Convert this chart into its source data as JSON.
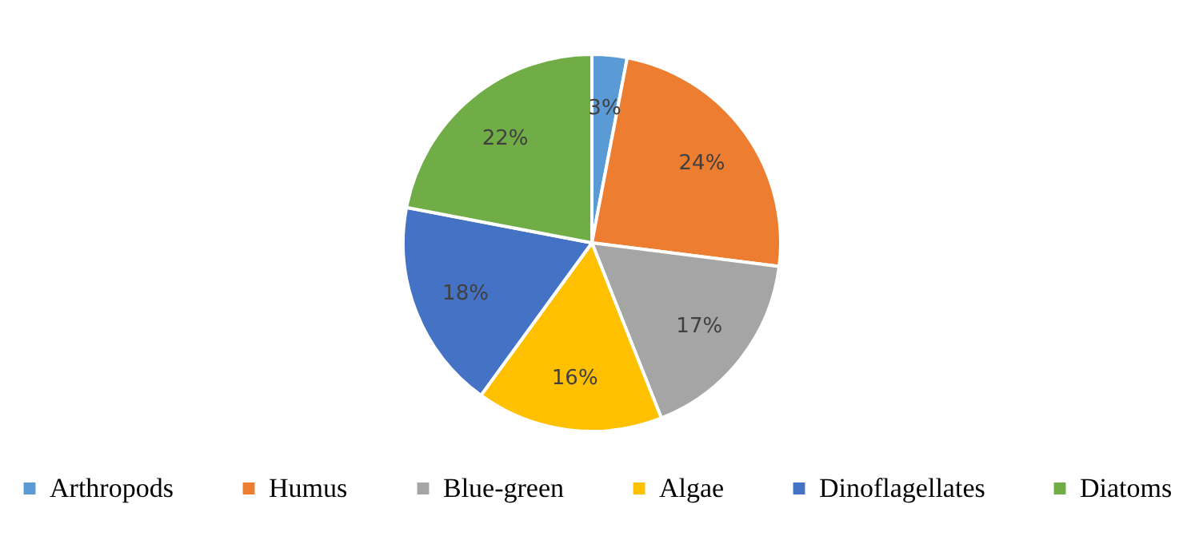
{
  "chart_data": {
    "type": "pie",
    "categories": [
      "Arthropods",
      "Humus",
      "Blue-green",
      "Algae",
      "Dinoflagellates",
      "Diatoms"
    ],
    "values": [
      3,
      24,
      17,
      16,
      18,
      22
    ],
    "colors": [
      "#5b9bd5",
      "#ed7d31",
      "#a5a5a5",
      "#ffc000",
      "#4472c4",
      "#70ad47"
    ],
    "value_labels": [
      "3%",
      "24%",
      "17%",
      "16%",
      "18%",
      "22%"
    ],
    "legend": "bottom"
  }
}
